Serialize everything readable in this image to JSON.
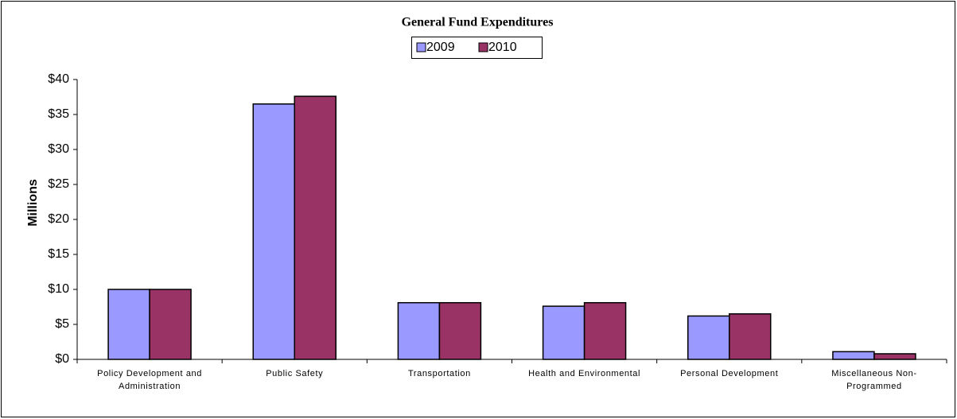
{
  "chart_data": {
    "type": "bar",
    "title": "General Fund Expenditures",
    "y_label": "Millions",
    "categories": [
      "Policy Development and Administration",
      "Public Safety",
      "Transportation",
      "Health and Environmental",
      "Personal Development",
      "Miscellaneous Non-Programmed"
    ],
    "series": [
      {
        "name": "2009",
        "color": "#9999ff",
        "values": [
          10,
          36.5,
          8.1,
          7.6,
          6.2,
          1.1
        ]
      },
      {
        "name": "2010",
        "color": "#993366",
        "values": [
          10,
          37.6,
          8.1,
          8.1,
          6.5,
          0.8
        ]
      }
    ],
    "ylim": [
      0,
      40
    ],
    "yticks": [
      {
        "value": 0,
        "label": "$0"
      },
      {
        "value": 5,
        "label": "$5"
      },
      {
        "value": 10,
        "label": "$10"
      },
      {
        "value": 15,
        "label": "$15"
      },
      {
        "value": 20,
        "label": "$20"
      },
      {
        "value": 25,
        "label": "$25"
      },
      {
        "value": 30,
        "label": "$30"
      },
      {
        "value": 35,
        "label": "$35"
      },
      {
        "value": 40,
        "label": "$40"
      }
    ],
    "legend": "top"
  }
}
